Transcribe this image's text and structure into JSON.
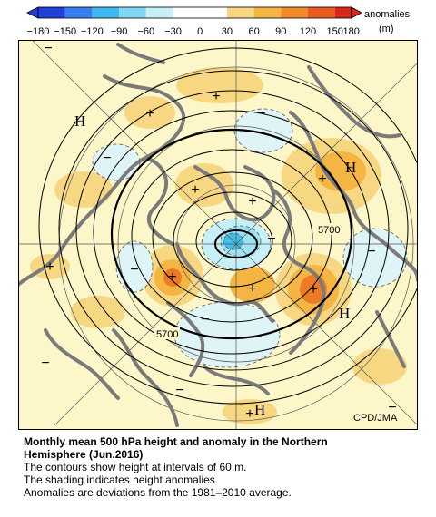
{
  "colorbar": {
    "label_line1": "anomalies",
    "label_line2": "(m)",
    "ticks": [
      "−180",
      "−150",
      "−120",
      "−90",
      "−60",
      "−30",
      "0",
      "30",
      "60",
      "90",
      "120",
      "150",
      "180"
    ],
    "colors": [
      "#1f3fd6",
      "#3a7ff0",
      "#3fb7f0",
      "#7fd8f3",
      "#c6f0f6",
      "#f7f7c4",
      "#f8d783",
      "#f5b543",
      "#f08a2b",
      "#e85a1f",
      "#d8261a",
      "#d8261a"
    ]
  },
  "map": {
    "high_labels": [
      "H",
      "H",
      "H",
      "H"
    ],
    "contour_labels": [
      "5700",
      "5700"
    ],
    "plus_markers": [
      "+",
      "+",
      "+",
      "+",
      "+",
      "+",
      "+",
      "+",
      "+",
      "+"
    ],
    "minus_markers": [
      "−",
      "−",
      "−",
      "−",
      "−",
      "−",
      "−",
      "−",
      "−",
      "−",
      "−"
    ],
    "credit": "CPD/JMA",
    "colors": {
      "background": "#fcf6c8",
      "positive_weak": "#f8d783",
      "positive_mid": "#f5b543",
      "positive_strong": "#ec7b25",
      "negative_weak": "#dff4f7",
      "negative_mid": "#9fe3f3",
      "negative_strong": "#3fc0ea",
      "land": "#7a7a7a"
    }
  },
  "caption": {
    "title_line1": "Monthly mean 500 hPa height and anomaly in the Northern",
    "title_line2": "Hemisphere (Jun.2016)",
    "line1": "The contours show height at intervals of 60 m.",
    "line2": "The shading indicates height anomalies.",
    "line3": "Anomalies are deviations from the 1981–2010 average."
  }
}
